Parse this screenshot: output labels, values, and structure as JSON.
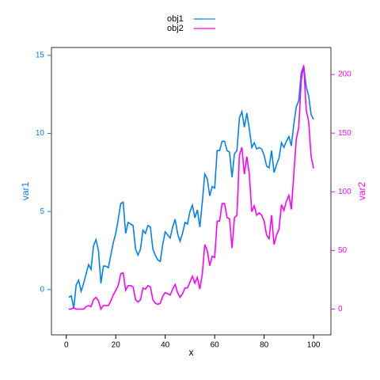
{
  "chart_data": {
    "type": "line",
    "xlabel": "x",
    "ylabel": "var1",
    "y2label": "var2",
    "x": [
      1,
      2,
      3,
      4,
      5,
      6,
      7,
      8,
      9,
      10,
      11,
      12,
      13,
      14,
      15,
      16,
      17,
      18,
      19,
      20,
      21,
      22,
      23,
      24,
      25,
      26,
      27,
      28,
      29,
      30,
      31,
      32,
      33,
      34,
      35,
      36,
      37,
      38,
      39,
      40,
      41,
      42,
      43,
      44,
      45,
      46,
      47,
      48,
      49,
      50,
      51,
      52,
      53,
      54,
      55,
      56,
      57,
      58,
      59,
      60,
      61,
      62,
      63,
      64,
      65,
      66,
      67,
      68,
      69,
      70,
      71,
      72,
      73,
      74,
      75,
      76,
      77,
      78,
      79,
      80,
      81,
      82,
      83,
      84,
      85,
      86,
      87,
      88,
      89,
      90,
      91,
      92,
      93,
      94,
      95,
      96,
      97,
      98,
      99,
      100
    ],
    "series": [
      {
        "name": "obj1",
        "color": "#0080ff",
        "axis": "y",
        "values": [
          -0.5,
          -0.4,
          -1.2,
          0.3,
          0.6,
          -0.1,
          0.4,
          1.0,
          1.6,
          1.3,
          2.8,
          3.2,
          2.5,
          0.4,
          1.5,
          1.5,
          1.4,
          2.2,
          3.0,
          3.6,
          4.5,
          5.5,
          5.6,
          3.6,
          4.3,
          4.2,
          4.1,
          2.6,
          2.2,
          2.6,
          3.8,
          3.6,
          4.1,
          4.0,
          2.6,
          2.2,
          1.9,
          1.8,
          2.9,
          3.7,
          3.5,
          3.3,
          4.0,
          4.5,
          3.6,
          3.1,
          3.6,
          4.3,
          4.2,
          5.0,
          5.4,
          4.6,
          5.1,
          4.0,
          5.6,
          7.4,
          7.1,
          6.0,
          6.6,
          6.5,
          8.9,
          8.9,
          9.5,
          9.5,
          8.9,
          8.8,
          7.2,
          8.7,
          8.9,
          11.0,
          11.4,
          10.4,
          11.3,
          10.3,
          9.1,
          9.4,
          9.0,
          9.1,
          9.0,
          8.6,
          7.9,
          7.8,
          8.9,
          7.5,
          8.0,
          8.4,
          9.4,
          9.1,
          9.5,
          9.8,
          9.2,
          10.6,
          11.7,
          12.1,
          13.9,
          14.3,
          13.0,
          12.4,
          11.2,
          10.9
        ]
      },
      {
        "name": "obj2",
        "color": "#ff00ff",
        "axis": "y2",
        "values": [
          0,
          0,
          1,
          0,
          0,
          0,
          0,
          2,
          3,
          2,
          8,
          10,
          7,
          0,
          3,
          3,
          3,
          7,
          12,
          16,
          20,
          30,
          31,
          16,
          20,
          20,
          19,
          8,
          6,
          8,
          18,
          17,
          20,
          19,
          8,
          5,
          4,
          5,
          11,
          14,
          13,
          12,
          17,
          21,
          14,
          10,
          13,
          18,
          18,
          23,
          28,
          22,
          27,
          17,
          30,
          55,
          50,
          37,
          45,
          44,
          75,
          75,
          90,
          90,
          78,
          77,
          52,
          78,
          80,
          131,
          138,
          115,
          130,
          115,
          83,
          88,
          80,
          82,
          80,
          75,
          63,
          60,
          80,
          55,
          63,
          68,
          89,
          84,
          92,
          97,
          85,
          115,
          145,
          155,
          195,
          208,
          170,
          160,
          130,
          120
        ]
      }
    ],
    "xlim": [
      -6,
      107
    ],
    "xticks": [
      0,
      20,
      40,
      60,
      80,
      100
    ],
    "ylim": [
      -2.9,
      15.5
    ],
    "yticks": [
      0,
      5,
      10,
      15
    ],
    "y2lim": [
      -22,
      223
    ],
    "y2ticks": [
      0,
      50,
      100,
      150,
      200
    ],
    "legend": "top"
  }
}
